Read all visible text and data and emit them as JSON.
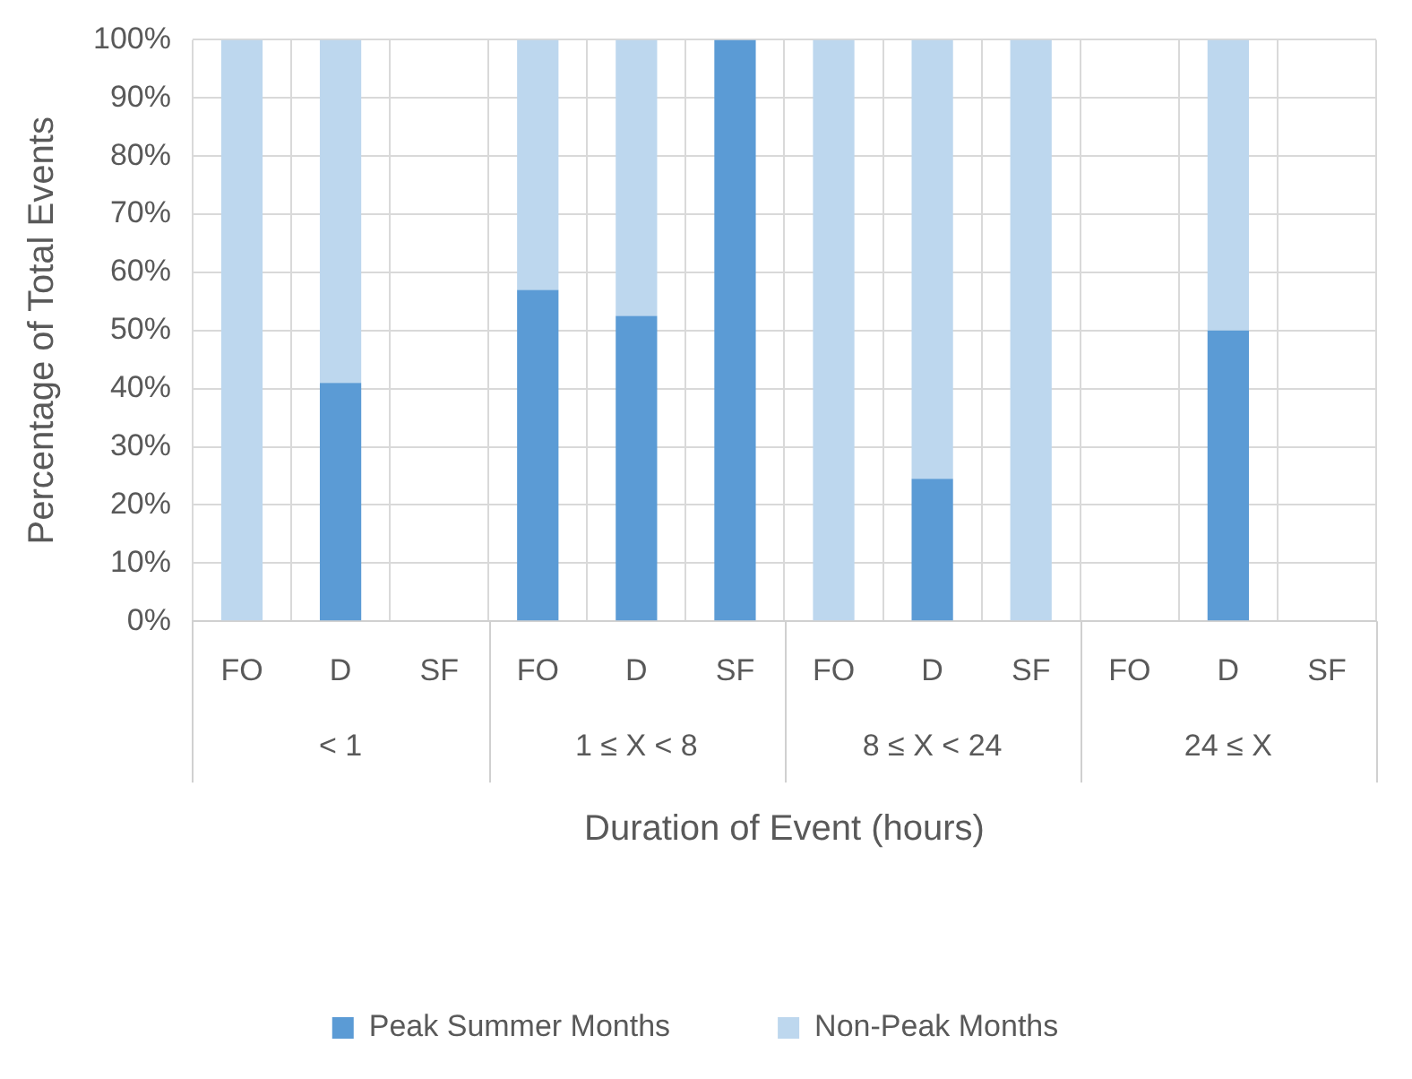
{
  "chart_data": {
    "type": "bar",
    "stacked": true,
    "categories": [
      "FO",
      "D",
      "SF",
      "FO",
      "D",
      "SF",
      "FO",
      "D",
      "SF",
      "FO",
      "D",
      "SF"
    ],
    "annotations": [
      "< 1",
      "1 ≤ X < 8",
      "8 ≤ X < 24",
      "24 ≤ X"
    ],
    "series": [
      {
        "name": "Peak Summer Months",
        "color": "#5b9bd5",
        "values": [
          0,
          41,
          null,
          57,
          52.5,
          100,
          0,
          24.5,
          0,
          null,
          50,
          null
        ]
      },
      {
        "name": "Non-Peak Months",
        "color": "#bdd7ee",
        "values": [
          100,
          59,
          null,
          43,
          47.5,
          0,
          100,
          75.5,
          100,
          null,
          50,
          null
        ]
      }
    ],
    "xlabel": "Duration of Event (hours)",
    "ylabel": "Percentage of Total Events",
    "ylim": [
      0,
      100
    ],
    "yticks": [
      {
        "value": 0,
        "label": "0%"
      },
      {
        "value": 10,
        "label": "10%"
      },
      {
        "value": 20,
        "label": "20%"
      },
      {
        "value": 30,
        "label": "30%"
      },
      {
        "value": 40,
        "label": "40%"
      },
      {
        "value": 50,
        "label": "50%"
      },
      {
        "value": 60,
        "label": "60%"
      },
      {
        "value": 70,
        "label": "70%"
      },
      {
        "value": 80,
        "label": "80%"
      },
      {
        "value": 90,
        "label": "90%"
      },
      {
        "value": 100,
        "label": "100%"
      }
    ],
    "grid": true,
    "legend": "bottom"
  }
}
